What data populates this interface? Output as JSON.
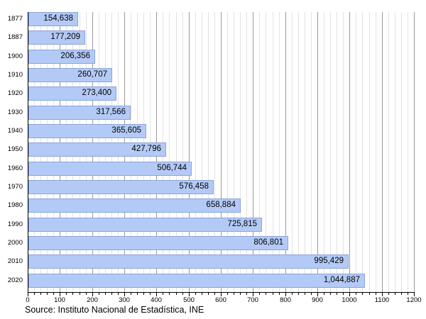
{
  "chart_data": {
    "type": "bar",
    "orientation": "horizontal",
    "title": "",
    "categories": [
      "1877",
      "1887",
      "1900",
      "1910",
      "1920",
      "1930",
      "1940",
      "1950",
      "1960",
      "1970",
      "1980",
      "1990",
      "2000",
      "2010",
      "2020"
    ],
    "values": [
      154638,
      177209,
      206356,
      260707,
      273400,
      317566,
      365605,
      427796,
      506744,
      576458,
      658884,
      725815,
      806801,
      995429,
      1044887
    ],
    "value_labels": [
      "154,638",
      "177,209",
      "206,356",
      "260,707",
      "273,400",
      "317,566",
      "365,605",
      "427,796",
      "506,744",
      "576,458",
      "658,884",
      "725,815",
      "806,801",
      "995,429",
      "1,044,887"
    ],
    "x_axis": {
      "min": 0,
      "max": 1200,
      "major_tick_step": 100,
      "minor_tick_step": 20,
      "tick_labels": [
        "0",
        "100",
        "200",
        "300",
        "400",
        "500",
        "600",
        "700",
        "800",
        "900",
        "1000",
        "1100",
        "1200"
      ],
      "scale_note": "axis in thousands"
    },
    "grid": "on",
    "legend": "none",
    "source_caption": "Source: Instituto Nacional de Estadística, INE",
    "colors": {
      "bar_fill": "#b4caf6",
      "bar_border": "#8ba3d8",
      "gridline_minor": "#e3e3e3",
      "gridline_major": "#999999",
      "axis_line": "#000000",
      "text": "#000000"
    }
  }
}
